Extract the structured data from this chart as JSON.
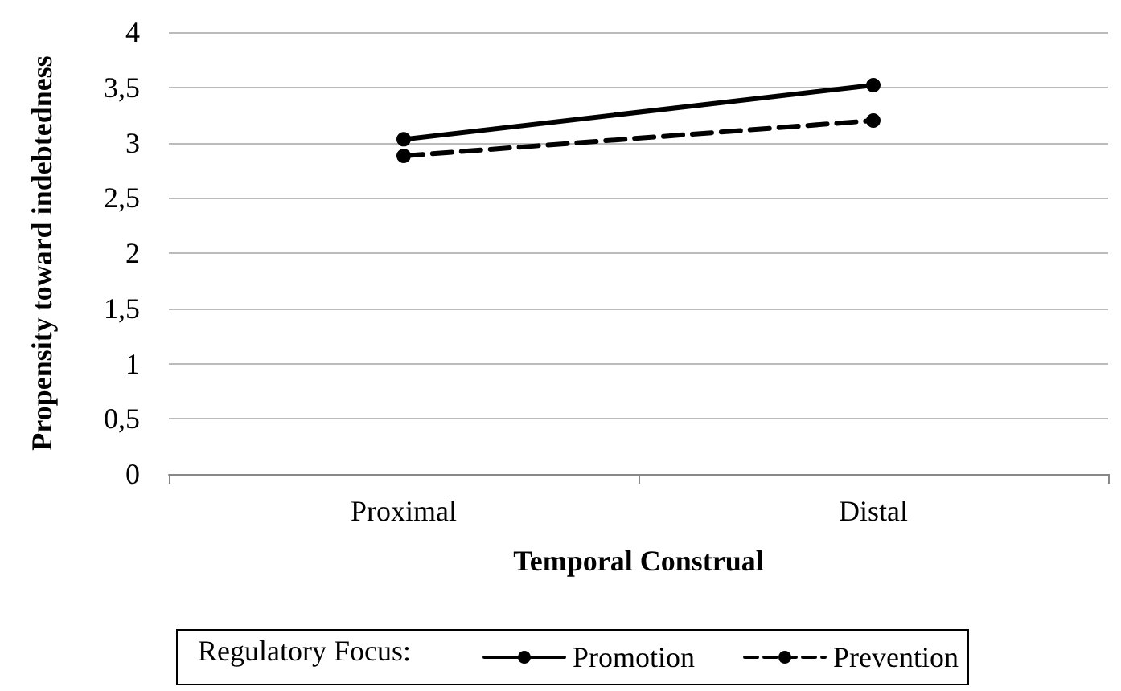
{
  "chart_data": {
    "type": "line",
    "xlabel": "Temporal Construal",
    "ylabel": "Propensity toward indebtedness",
    "legend_title": "Regulatory Focus:",
    "categories": [
      "Proximal",
      "Distal"
    ],
    "series": [
      {
        "name": "Promotion",
        "color": "#000000",
        "values": [
          3.03,
          3.52
        ],
        "line_style": "solid"
      },
      {
        "name": "Prevention",
        "color": "#000000",
        "values": [
          2.88,
          3.2
        ],
        "line_style": "dashed"
      }
    ],
    "ylim": [
      0,
      4
    ],
    "yticks": [
      0,
      {
        "value": 0.5,
        "label": "0,5"
      },
      1,
      {
        "value": 1.5,
        "label": "1,5"
      },
      2,
      {
        "value": 2.5,
        "label": "2,5"
      },
      3,
      {
        "value": 3.5,
        "label": "3,5"
      },
      4
    ],
    "grid": "y",
    "legend": "bottom",
    "marker": "circle"
  }
}
